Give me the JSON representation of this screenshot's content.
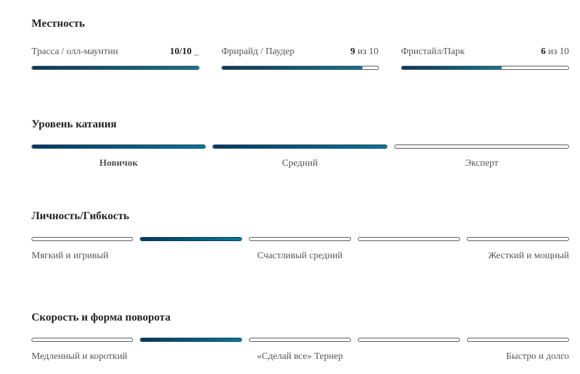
{
  "terrain": {
    "title": "Местность",
    "items": [
      {
        "label": "Трасса / олл-маунтин",
        "value": "10/10 _",
        "value_bold": "10/10",
        "value_rest": " _",
        "fraction": 1.0
      },
      {
        "label": "Фрирайд / Паудер",
        "value_bold": "9",
        "value_rest": " из 10",
        "fraction": 0.9
      },
      {
        "label": "Фристайл/Парк",
        "value_bold": "6",
        "value_rest": " из 10",
        "fraction": 0.6
      }
    ]
  },
  "level": {
    "title": "Уровень катания",
    "segments_filled": [
      true,
      true,
      false
    ],
    "labels": [
      "Новичок",
      "Средний",
      "Эксперт"
    ]
  },
  "flex": {
    "title": "Личность/Гибкость",
    "selected_segment": 2,
    "segments": 5,
    "labels": [
      "Мягкий и игривый",
      "Счастливый средний",
      "Жесткий и мощный"
    ]
  },
  "turn": {
    "title": "Скорость и форма поворота",
    "selected_segment": 2,
    "segments": 5,
    "labels": [
      "Медленный и короткий",
      "«Сделай все» Тернер",
      "Быстро и долго"
    ]
  },
  "colors": {
    "fill_start": "#07395c",
    "fill_end": "#0a7896"
  }
}
